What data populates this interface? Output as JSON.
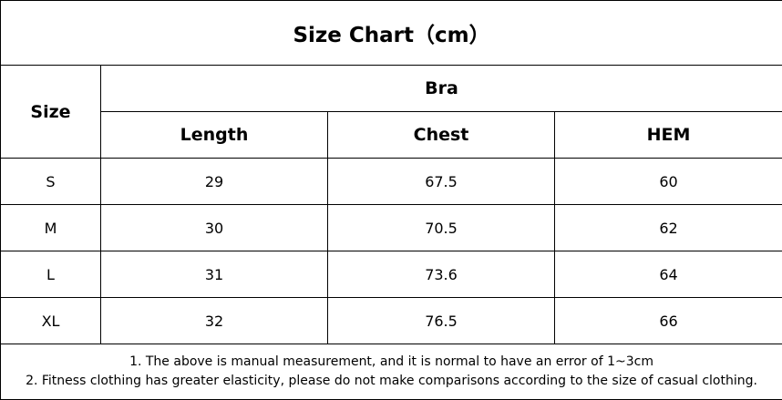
{
  "title": "Size Chart（cm）",
  "header": {
    "size_label": "Size",
    "group_label": "Bra",
    "columns": [
      "Length",
      "Chest",
      "HEM"
    ]
  },
  "rows": [
    {
      "size": "S",
      "length": "29",
      "chest": "67.5",
      "hem": "60"
    },
    {
      "size": "M",
      "length": "30",
      "chest": "70.5",
      "hem": "62"
    },
    {
      "size": "L",
      "length": "31",
      "chest": "73.6",
      "hem": "64"
    },
    {
      "size": "XL",
      "length": "32",
      "chest": "76.5",
      "hem": "66"
    }
  ],
  "notes": [
    "1. The above is manual measurement, and it is normal to have an error of 1~3cm",
    "2. Fitness clothing has greater elasticity, please do not make comparisons according to the size of casual clothing."
  ]
}
